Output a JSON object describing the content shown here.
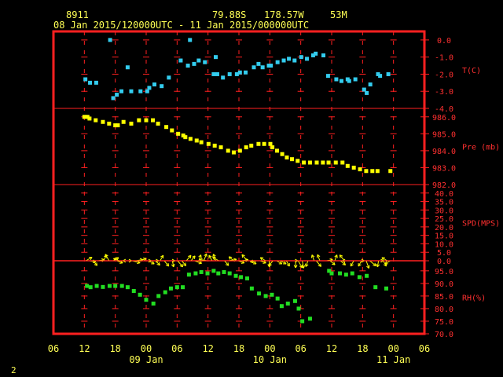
{
  "header": {
    "station": "8911",
    "latitude": "79.88S",
    "longitude": "178.57W",
    "elevation": "53M",
    "period": "08 Jan 2015/120000UTC - 11 Jan 2015/000000UTC"
  },
  "page_number": "2",
  "colors": {
    "frame": "#ff2020",
    "grid": "#ff2020",
    "labels": "#ff3030",
    "x_labels": "#ffff55",
    "temperature": "#33ccee",
    "pressure": "#ffff00",
    "wind": "#ffff00",
    "humidity": "#22dd22"
  },
  "chart_data": {
    "type": "scatter",
    "x_unit": "hours since 08 Jan 2015 06UTC",
    "x_ticks": [
      "06",
      "12",
      "18",
      "00",
      "06",
      "12",
      "18",
      "00",
      "06",
      "12",
      "18",
      "00",
      "06"
    ],
    "x_day_labels": [
      {
        "label": "09 Jan",
        "hour": 18
      },
      {
        "label": "10 Jan",
        "hour": 42
      },
      {
        "label": "11 Jan",
        "hour": 66
      }
    ],
    "panels": [
      {
        "key": "temperature",
        "label": "T(C)",
        "ticks": [
          "0.0",
          "-1.0",
          "-2.0",
          "-3.0",
          "-4.0"
        ],
        "tick_values": [
          0,
          -1,
          -2,
          -3,
          -4
        ],
        "ylim": [
          -4,
          0.5
        ],
        "points": [
          [
            6.2,
            -2.3
          ],
          [
            7.1,
            -2.5
          ],
          [
            8.3,
            -2.5
          ],
          [
            11.6,
            -3.4
          ],
          [
            12.3,
            -3.2
          ],
          [
            13.2,
            -3.0
          ],
          [
            14.4,
            -1.6
          ],
          [
            15.1,
            -3.0
          ],
          [
            16.9,
            -3.0
          ],
          [
            18.2,
            -3.0
          ],
          [
            18.6,
            -2.8
          ],
          [
            19.6,
            -2.6
          ],
          [
            21.0,
            -2.7
          ],
          [
            22.4,
            -2.2
          ],
          [
            24.7,
            -1.2
          ],
          [
            26.1,
            -1.5
          ],
          [
            27.3,
            -1.4
          ],
          [
            28.2,
            -1.2
          ],
          [
            29.4,
            -1.3
          ],
          [
            31.1,
            -2.0
          ],
          [
            31.8,
            -2.0
          ],
          [
            32.9,
            -2.2
          ],
          [
            34.2,
            -2.0
          ],
          [
            35.6,
            -2.0
          ],
          [
            36.2,
            -1.9
          ],
          [
            37.3,
            -1.9
          ],
          [
            38.9,
            -1.6
          ],
          [
            39.8,
            -1.4
          ],
          [
            40.6,
            -1.6
          ],
          [
            41.8,
            -1.5
          ],
          [
            42.2,
            -1.5
          ],
          [
            43.5,
            -1.3
          ],
          [
            44.7,
            -1.2
          ],
          [
            45.7,
            -1.1
          ],
          [
            46.8,
            -1.2
          ],
          [
            48.1,
            -1.0
          ],
          [
            49.2,
            -1.1
          ],
          [
            50.4,
            -0.9
          ],
          [
            50.9,
            -0.8
          ],
          [
            52.4,
            -0.9
          ],
          [
            53.3,
            -2.1
          ],
          [
            54.9,
            -2.3
          ],
          [
            55.9,
            -2.4
          ],
          [
            57.1,
            -2.3
          ],
          [
            57.4,
            -2.4
          ],
          [
            58.6,
            -2.3
          ],
          [
            60.3,
            -2.9
          ],
          [
            60.8,
            -3.1
          ],
          [
            61.5,
            -2.6
          ],
          [
            63.0,
            -2.0
          ],
          [
            63.4,
            -2.1
          ],
          [
            65.0,
            -2.0
          ],
          [
            11.0,
            0.0
          ],
          [
            26.5,
            0.0
          ],
          [
            31.5,
            -1.0
          ]
        ]
      },
      {
        "key": "pressure",
        "label": "Pre (mb)",
        "ticks": [
          "986.0",
          "985.0",
          "984.0",
          "983.0",
          "982.0"
        ],
        "tick_values": [
          986,
          985,
          984,
          983,
          982
        ],
        "ylim": [
          982,
          986.5
        ],
        "points": [
          [
            6.0,
            986.0
          ],
          [
            6.6,
            986.0
          ],
          [
            7.0,
            985.9
          ],
          [
            8.2,
            985.8
          ],
          [
            9.6,
            985.7
          ],
          [
            10.8,
            985.6
          ],
          [
            12.0,
            985.5
          ],
          [
            12.5,
            985.5
          ],
          [
            13.6,
            985.7
          ],
          [
            15.1,
            985.6
          ],
          [
            16.6,
            985.8
          ],
          [
            18.0,
            985.8
          ],
          [
            19.3,
            985.8
          ],
          [
            20.3,
            985.6
          ],
          [
            21.9,
            985.4
          ],
          [
            23.0,
            985.2
          ],
          [
            24.2,
            985.0
          ],
          [
            25.2,
            984.9
          ],
          [
            25.6,
            984.8
          ],
          [
            26.6,
            984.7
          ],
          [
            27.8,
            984.6
          ],
          [
            28.7,
            984.5
          ],
          [
            30.1,
            984.4
          ],
          [
            31.3,
            984.3
          ],
          [
            32.5,
            984.2
          ],
          [
            33.9,
            984.0
          ],
          [
            35.0,
            983.9
          ],
          [
            36.2,
            984.0
          ],
          [
            37.4,
            984.2
          ],
          [
            38.4,
            984.3
          ],
          [
            39.8,
            984.4
          ],
          [
            40.9,
            984.4
          ],
          [
            42.1,
            984.4
          ],
          [
            42.5,
            984.2
          ],
          [
            43.4,
            984.0
          ],
          [
            44.4,
            983.8
          ],
          [
            45.3,
            983.6
          ],
          [
            46.3,
            983.5
          ],
          [
            47.4,
            983.4
          ],
          [
            48.6,
            983.3
          ],
          [
            49.8,
            983.3
          ],
          [
            51.1,
            983.3
          ],
          [
            52.3,
            983.3
          ],
          [
            53.4,
            983.3
          ],
          [
            54.8,
            983.3
          ],
          [
            56.1,
            983.3
          ],
          [
            57.1,
            983.1
          ],
          [
            58.3,
            983.0
          ],
          [
            59.5,
            982.9
          ],
          [
            60.7,
            982.8
          ],
          [
            61.9,
            982.8
          ],
          [
            62.9,
            982.8
          ],
          [
            65.4,
            982.8
          ]
        ]
      },
      {
        "key": "wind",
        "label": "SPD(MPS)",
        "ticks": [
          "40.0",
          "35.0",
          "30.0",
          "25.0",
          "20.0",
          "15.0",
          "10.0",
          "5.0",
          "0.0"
        ],
        "tick_values": [
          40,
          35,
          30,
          25,
          20,
          15,
          10,
          5,
          0
        ],
        "ylim": [
          0,
          45
        ],
        "points": [
          [
            6.3,
            1.5,
            60
          ],
          [
            7.0,
            1.2,
            100
          ],
          [
            7.7,
            0.9,
            140
          ],
          [
            8.7,
            0.6,
            80
          ],
          [
            9.7,
            1.4,
            30
          ],
          [
            10.8,
            1.6,
            330
          ],
          [
            11.6,
            1.1,
            60
          ],
          [
            12.3,
            1.3,
            110
          ],
          [
            12.8,
            1.1,
            290
          ],
          [
            13.8,
            1.5,
            90
          ],
          [
            14.7,
            0.8,
            270
          ],
          [
            15.3,
            1.7,
            105
          ],
          [
            16.0,
            1.5,
            80
          ],
          [
            16.8,
            1.4,
            70
          ],
          [
            17.7,
            1.4,
            90
          ],
          [
            18.5,
            0.8,
            120
          ],
          [
            19.2,
            1.0,
            90
          ],
          [
            19.8,
            1.2,
            135
          ],
          [
            20.7,
            1.3,
            30
          ],
          [
            21.5,
            1.5,
            140
          ],
          [
            22.2,
            1.5,
            90
          ],
          [
            23.1,
            1.1,
            170
          ],
          [
            24.1,
            1.7,
            140
          ],
          [
            24.9,
            1.4,
            140
          ],
          [
            25.8,
            1.5,
            40
          ],
          [
            26.7,
            1.2,
            40
          ],
          [
            27.4,
            1.6,
            110
          ],
          [
            28.2,
            0.8,
            20
          ],
          [
            29.2,
            1.6,
            20
          ],
          [
            29.8,
            1.6,
            280
          ],
          [
            30.8,
            1.3,
            330
          ],
          [
            31.5,
            1.5,
            340
          ],
          [
            32.1,
            1.5,
            300
          ],
          [
            33.2,
            1.1,
            140
          ],
          [
            34.0,
            1.7,
            80
          ],
          [
            35.0,
            0.9,
            310
          ],
          [
            35.9,
            1.2,
            110
          ],
          [
            36.6,
            1.2,
            80
          ],
          [
            37.6,
            1.7,
            320
          ],
          [
            38.3,
            1.3,
            120
          ],
          [
            39.4,
            1.0,
            260
          ],
          [
            40.1,
            0.9,
            110
          ],
          [
            41.2,
            1.3,
            300
          ],
          [
            41.9,
            0.8,
            180
          ],
          [
            42.6,
            1.4,
            220
          ],
          [
            43.3,
            0.9,
            120
          ],
          [
            44.1,
            1.0,
            120
          ],
          [
            45.2,
            1.2,
            150
          ],
          [
            46.2,
            0.8,
            90
          ],
          [
            47.0,
            1.5,
            180
          ],
          [
            47.5,
            1.7,
            150
          ],
          [
            48.3,
            1.6,
            170
          ],
          [
            49.4,
            1.1,
            200
          ],
          [
            50.6,
            0.9,
            340
          ],
          [
            51.0,
            1.6,
            140
          ],
          [
            51.7,
            1.4,
            340
          ],
          [
            53.0,
            1.1,
            80
          ],
          [
            53.7,
            0.9,
            130
          ],
          [
            54.6,
            0.9,
            20
          ],
          [
            55.7,
            1.4,
            130
          ],
          [
            56.5,
            1.6,
            320
          ],
          [
            57.3,
            1.3,
            270
          ],
          [
            58.3,
            0.9,
            210
          ],
          [
            59.1,
            1.0,
            90
          ],
          [
            59.8,
            1.0,
            210
          ],
          [
            60.7,
            1.7,
            160
          ],
          [
            61.4,
            1.7,
            130
          ],
          [
            62.5,
            1.7,
            90
          ],
          [
            63.1,
            1.2,
            190
          ],
          [
            64.0,
            1.3,
            150
          ],
          [
            64.8,
            1.3,
            300
          ],
          [
            65.4,
            1.3,
            240
          ]
        ]
      },
      {
        "key": "humidity",
        "label": "RH(%)",
        "ticks": [
          "95.0",
          "90.0",
          "85.0",
          "80.0",
          "75.0",
          "70.0"
        ],
        "tick_values": [
          95,
          90,
          85,
          80,
          75,
          70
        ],
        "ylim": [
          70,
          99
        ],
        "points": [
          [
            6.5,
            89
          ],
          [
            7.2,
            88.5
          ],
          [
            8.4,
            89
          ],
          [
            9.6,
            88.6
          ],
          [
            10.9,
            89
          ],
          [
            12.0,
            89
          ],
          [
            13.3,
            89
          ],
          [
            14.4,
            88.5
          ],
          [
            15.6,
            87
          ],
          [
            16.8,
            85.5
          ],
          [
            18.0,
            83.5
          ],
          [
            19.4,
            82
          ],
          [
            20.4,
            85
          ],
          [
            21.7,
            86.5
          ],
          [
            22.8,
            88
          ],
          [
            24.0,
            88.5
          ],
          [
            25.1,
            88.5
          ],
          [
            26.3,
            93.5
          ],
          [
            27.6,
            94
          ],
          [
            28.7,
            94.5
          ],
          [
            29.9,
            94
          ],
          [
            31.1,
            95
          ],
          [
            32.0,
            94
          ],
          [
            33.1,
            94.5
          ],
          [
            34.2,
            94
          ],
          [
            35.4,
            93
          ],
          [
            36.4,
            92.5
          ],
          [
            37.6,
            92
          ],
          [
            38.5,
            88
          ],
          [
            39.9,
            86
          ],
          [
            41.2,
            85
          ],
          [
            42.4,
            85.5
          ],
          [
            43.5,
            84
          ],
          [
            44.3,
            81
          ],
          [
            45.5,
            82
          ],
          [
            46.9,
            83
          ],
          [
            47.6,
            80
          ],
          [
            48.3,
            75
          ],
          [
            49.8,
            76
          ],
          [
            53.5,
            95
          ],
          [
            54.0,
            94
          ],
          [
            55.6,
            94
          ],
          [
            56.8,
            93.5
          ],
          [
            58.0,
            94
          ],
          [
            59.4,
            92.5
          ],
          [
            60.8,
            93
          ],
          [
            62.5,
            88.5
          ],
          [
            64.6,
            88
          ]
        ]
      }
    ]
  }
}
